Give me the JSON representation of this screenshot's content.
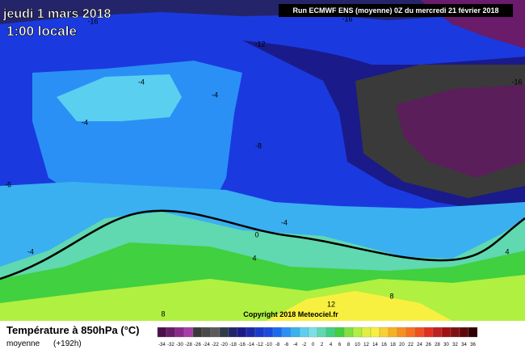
{
  "header": {
    "title": "jeudi 1 mars 2018",
    "time": "1:00 locale",
    "run": "Run ECMWF ENS (moyenne) 0Z du mercredi 21 février 2018"
  },
  "map": {
    "contour_labels": [
      "-16",
      "-16",
      "-12",
      "-16",
      "-4",
      "-4",
      "-4",
      "-8",
      "-6",
      "-4",
      "-4",
      "0",
      "4",
      "4",
      "8",
      "12",
      "8"
    ],
    "copyright": "Copyright 2018 Meteociel.fr"
  },
  "footer": {
    "title": "Température à 850hPa (°C)",
    "subtitle": "moyenne",
    "lead": "(+192h)"
  },
  "legend": {
    "labels": [
      -34,
      -32,
      -30,
      -28,
      -26,
      -24,
      -22,
      -20,
      -18,
      -16,
      -14,
      -12,
      -10,
      -8,
      -6,
      -4,
      -2,
      0,
      2,
      4,
      6,
      8,
      10,
      12,
      14,
      16,
      18,
      20,
      22,
      24,
      26,
      28,
      30,
      32,
      34,
      36
    ],
    "colors": [
      "#4b0f4b",
      "#6a1b6a",
      "#8a2a8a",
      "#a83ca8",
      "#3a3a3a",
      "#4a4a4a",
      "#5a5a5a",
      "#2f3a4a",
      "#24246a",
      "#1a1a8a",
      "#1a2aaa",
      "#1a3acc",
      "#1a4ae0",
      "#1a6af0",
      "#2a90f5",
      "#3ab0f0",
      "#5acff0",
      "#7ae0e8",
      "#60d8b0",
      "#40d080",
      "#40d040",
      "#80e040",
      "#b0f040",
      "#e0f040",
      "#f8f040",
      "#f8d030",
      "#f8b020",
      "#f89020",
      "#f87020",
      "#f05020",
      "#e03020",
      "#c02020",
      "#a01010",
      "#801010",
      "#600808",
      "#300000"
    ]
  }
}
